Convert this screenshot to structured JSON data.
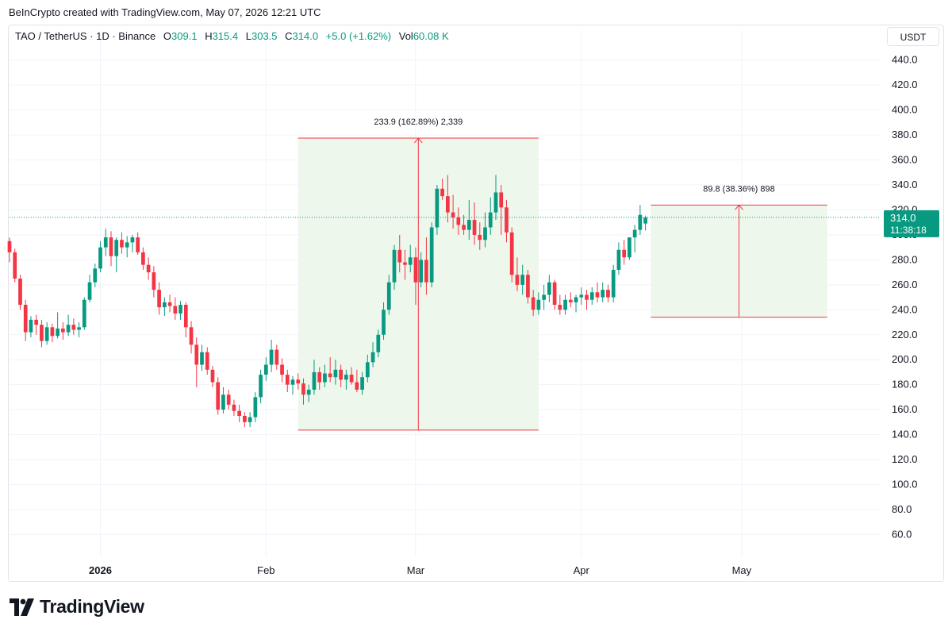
{
  "header": {
    "credit": "BeInCrypto created with TradingView.com, May 07, 2026 12:21 UTC"
  },
  "legend": {
    "symbol": "TAO / TetherUS · 1D · Binance",
    "open_label": "O",
    "open_value": "309.1",
    "high_label": "H",
    "high_value": "315.4",
    "low_label": "L",
    "low_value": "303.5",
    "close_label": "C",
    "close_value": "314.0",
    "change": "+5.0 (+1.62%)",
    "vol_label": "Vol",
    "vol_value": "60.08 K"
  },
  "currency_button": "USDT",
  "colors": {
    "up": "#089981",
    "down": "#f23645",
    "range_fill": "#edf7ec",
    "range_line": "#f23645",
    "grid": "#f0f3fa"
  },
  "footer": {
    "brand": "TradingView",
    "logo_icon": "tradingview-logo-icon"
  },
  "chart_data": {
    "type": "candlestick",
    "title": "TAO / TetherUS · 1D · Binance",
    "y_axis": {
      "ticks": [
        "60.0",
        "80.0",
        "100.0",
        "120.0",
        "140.0",
        "160.0",
        "180.0",
        "200.0",
        "220.0",
        "240.0",
        "260.0",
        "280.0",
        "300.0",
        "320.0",
        "340.0",
        "360.0",
        "380.0",
        "400.0",
        "420.0",
        "440.0"
      ],
      "ylim": [
        45,
        450
      ]
    },
    "x_axis": {
      "ticks": [
        {
          "label": "2026",
          "date": "2026-01-01"
        },
        {
          "label": "Feb",
          "date": "2026-02-01"
        },
        {
          "label": "Mar",
          "date": "2026-03-01"
        },
        {
          "label": "Apr",
          "date": "2026-04-01"
        },
        {
          "label": "May",
          "date": "2026-05-01"
        }
      ],
      "xlim": [
        "2025-12-15",
        "2026-05-27"
      ]
    },
    "grid": true,
    "last_price": {
      "value": 314.0,
      "label": "314.0",
      "countdown": "11:38:18"
    },
    "ohlc_start_date": "2025-12-15",
    "ohlc": [
      [
        295,
        298,
        278,
        286
      ],
      [
        286,
        289,
        262,
        265
      ],
      [
        265,
        268,
        240,
        244
      ],
      [
        244,
        248,
        215,
        222
      ],
      [
        222,
        235,
        218,
        232
      ],
      [
        232,
        236,
        220,
        228
      ],
      [
        228,
        232,
        210,
        215
      ],
      [
        215,
        230,
        212,
        226
      ],
      [
        226,
        229,
        214,
        219
      ],
      [
        219,
        238,
        217,
        225
      ],
      [
        225,
        230,
        216,
        222
      ],
      [
        222,
        236,
        219,
        228
      ],
      [
        228,
        233,
        220,
        224
      ],
      [
        224,
        230,
        218,
        226
      ],
      [
        226,
        250,
        224,
        248
      ],
      [
        248,
        268,
        246,
        262
      ],
      [
        262,
        277,
        258,
        273
      ],
      [
        273,
        295,
        270,
        290
      ],
      [
        290,
        305,
        283,
        298
      ],
      [
        298,
        303,
        275,
        283
      ],
      [
        283,
        298,
        270,
        296
      ],
      [
        296,
        302,
        285,
        290
      ],
      [
        290,
        299,
        282,
        294
      ],
      [
        294,
        300,
        286,
        298
      ],
      [
        298,
        302,
        284,
        286
      ],
      [
        286,
        290,
        272,
        276
      ],
      [
        276,
        282,
        264,
        270
      ],
      [
        270,
        275,
        250,
        256
      ],
      [
        256,
        262,
        236,
        242
      ],
      [
        242,
        250,
        235,
        246
      ],
      [
        246,
        252,
        238,
        243
      ],
      [
        243,
        250,
        232,
        237
      ],
      [
        237,
        247,
        232,
        244
      ],
      [
        244,
        246,
        218,
        226
      ],
      [
        226,
        231,
        205,
        212
      ],
      [
        212,
        218,
        178,
        196
      ],
      [
        196,
        212,
        191,
        206
      ],
      [
        206,
        210,
        188,
        192
      ],
      [
        192,
        195,
        178,
        182
      ],
      [
        182,
        186,
        156,
        160
      ],
      [
        160,
        178,
        157,
        172
      ],
      [
        172,
        176,
        160,
        164
      ],
      [
        164,
        168,
        155,
        159
      ],
      [
        159,
        164,
        150,
        155
      ],
      [
        155,
        158,
        146,
        150
      ],
      [
        150,
        158,
        146,
        154
      ],
      [
        154,
        174,
        150,
        170
      ],
      [
        170,
        192,
        165,
        188
      ],
      [
        188,
        202,
        183,
        196
      ],
      [
        196,
        216,
        190,
        208
      ],
      [
        208,
        212,
        192,
        196
      ],
      [
        196,
        201,
        182,
        188
      ],
      [
        188,
        192,
        174,
        180
      ],
      [
        180,
        187,
        172,
        184
      ],
      [
        184,
        189,
        176,
        181
      ],
      [
        181,
        185,
        164,
        172
      ],
      [
        172,
        180,
        166,
        176
      ],
      [
        176,
        200,
        172,
        190
      ],
      [
        190,
        194,
        176,
        182
      ],
      [
        182,
        196,
        178,
        189
      ],
      [
        189,
        202,
        182,
        186
      ],
      [
        186,
        200,
        180,
        192
      ],
      [
        192,
        196,
        178,
        184
      ],
      [
        184,
        192,
        176,
        188
      ],
      [
        188,
        194,
        180,
        182
      ],
      [
        182,
        192,
        174,
        176
      ],
      [
        176,
        190,
        172,
        186
      ],
      [
        186,
        204,
        182,
        198
      ],
      [
        198,
        214,
        194,
        206
      ],
      [
        206,
        224,
        202,
        220
      ],
      [
        220,
        246,
        216,
        240
      ],
      [
        240,
        268,
        236,
        262
      ],
      [
        262,
        292,
        256,
        288
      ],
      [
        288,
        300,
        270,
        278
      ],
      [
        278,
        288,
        264,
        276
      ],
      [
        276,
        292,
        270,
        282
      ],
      [
        282,
        290,
        244,
        262
      ],
      [
        262,
        286,
        258,
        280
      ],
      [
        280,
        298,
        252,
        262
      ],
      [
        262,
        310,
        258,
        306
      ],
      [
        306,
        340,
        300,
        337
      ],
      [
        337,
        345,
        328,
        331
      ],
      [
        331,
        348,
        310,
        318
      ],
      [
        318,
        332,
        305,
        314
      ],
      [
        314,
        322,
        300,
        308
      ],
      [
        308,
        316,
        300,
        304
      ],
      [
        304,
        328,
        296,
        312
      ],
      [
        312,
        326,
        292,
        300
      ],
      [
        300,
        310,
        288,
        296
      ],
      [
        296,
        318,
        290,
        306
      ],
      [
        306,
        330,
        300,
        318
      ],
      [
        318,
        348,
        312,
        334
      ],
      [
        334,
        340,
        300,
        322
      ],
      [
        322,
        328,
        294,
        302
      ],
      [
        302,
        306,
        262,
        268
      ],
      [
        268,
        282,
        255,
        260
      ],
      [
        260,
        276,
        252,
        268
      ],
      [
        268,
        272,
        245,
        250
      ],
      [
        250,
        256,
        235,
        240
      ],
      [
        240,
        254,
        236,
        248
      ],
      [
        248,
        260,
        240,
        252
      ],
      [
        252,
        268,
        246,
        262
      ],
      [
        262,
        264,
        240,
        244
      ],
      [
        244,
        252,
        236,
        240
      ],
      [
        240,
        252,
        236,
        248
      ],
      [
        248,
        254,
        242,
        246
      ],
      [
        246,
        252,
        238,
        250
      ],
      [
        250,
        258,
        244,
        252
      ],
      [
        252,
        256,
        240,
        248
      ],
      [
        248,
        258,
        244,
        254
      ],
      [
        254,
        262,
        246,
        250
      ],
      [
        250,
        262,
        246,
        256
      ],
      [
        256,
        260,
        246,
        250
      ],
      [
        250,
        276,
        246,
        272
      ],
      [
        272,
        294,
        268,
        288
      ],
      [
        288,
        296,
        276,
        282
      ],
      [
        282,
        298,
        280,
        298
      ],
      [
        298,
        308,
        286,
        304
      ],
      [
        304,
        324,
        300,
        316
      ],
      [
        309.1,
        315.4,
        303.5,
        314.0
      ]
    ],
    "annotations": [
      {
        "type": "date_price_range",
        "start_date": "2026-02-07",
        "end_date": "2026-03-24",
        "price_from": 143.6,
        "price_to": 377.5,
        "label": "233.9 (162.89%) 2,339"
      },
      {
        "type": "date_price_range",
        "start_date": "2026-04-14",
        "end_date": "2026-05-17",
        "price_from": 234.1,
        "price_to": 323.9,
        "label": "89.8 (38.36%) 898"
      }
    ]
  }
}
